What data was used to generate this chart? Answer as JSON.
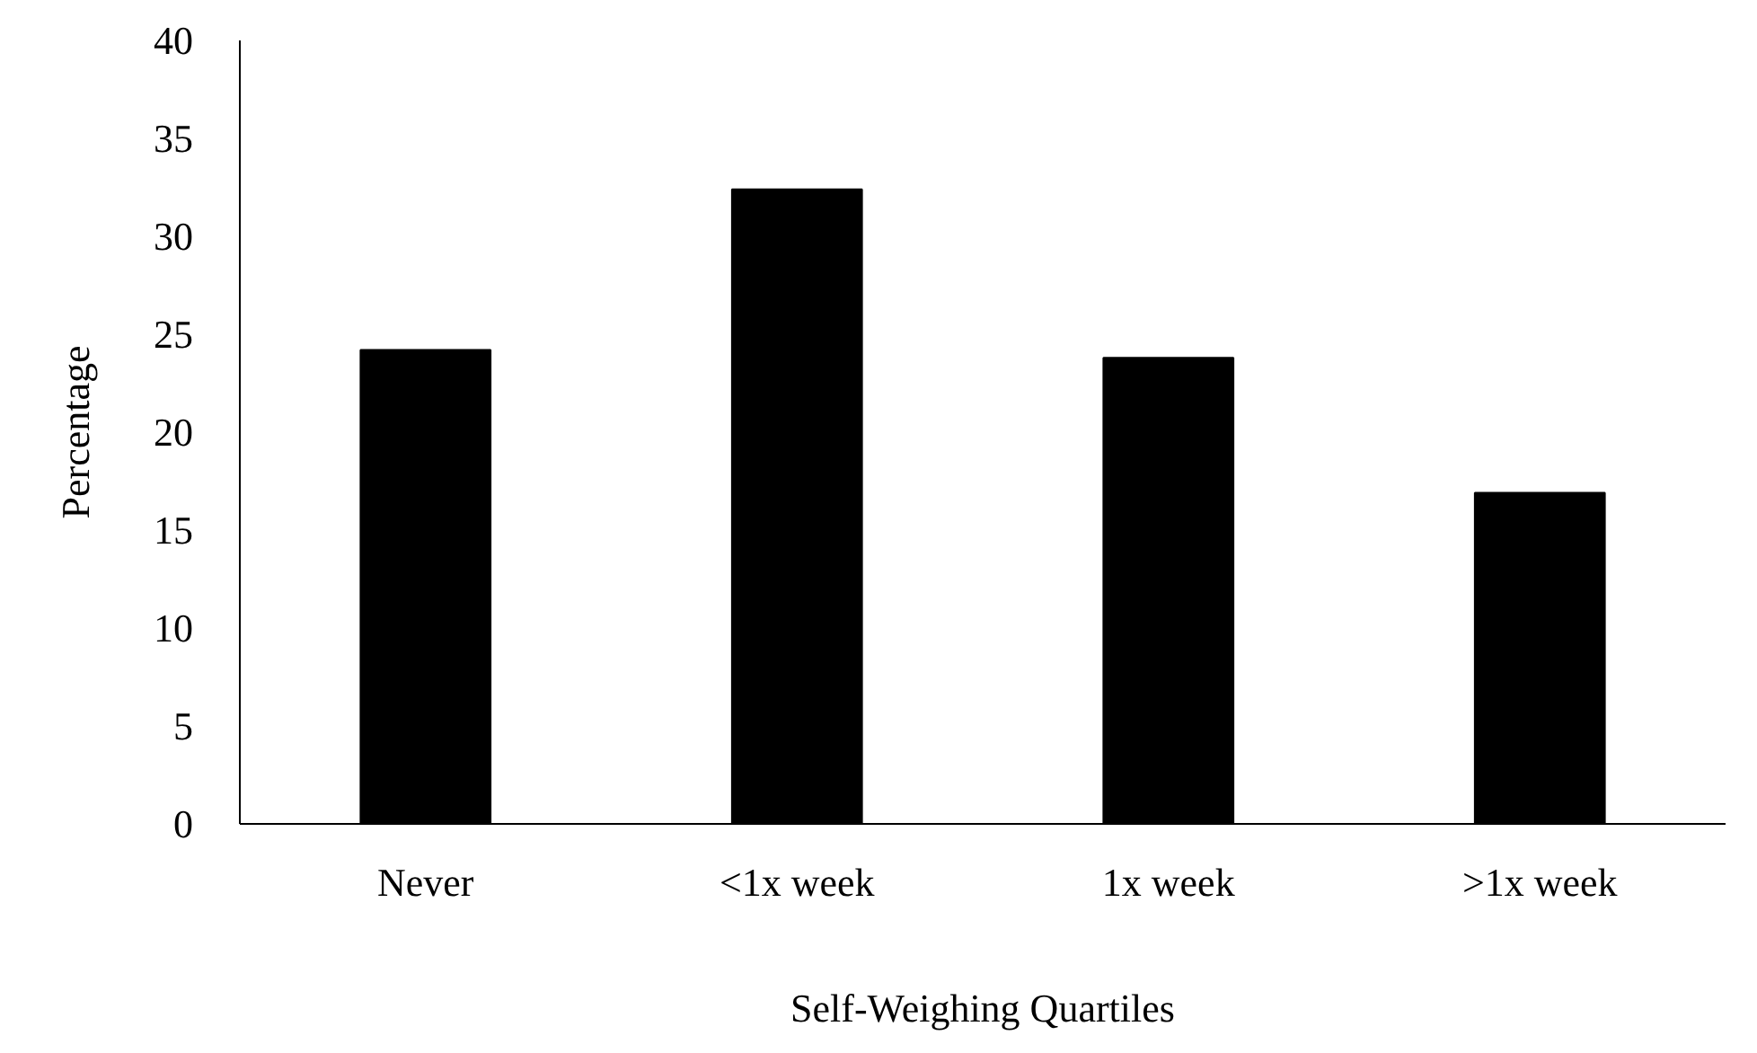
{
  "chart_data": {
    "type": "bar",
    "xlabel": "Self-Weighing Quartiles",
    "ylabel": "Percentage",
    "categories": [
      "Never",
      "<1x week",
      "1x week",
      ">1x week"
    ],
    "values": [
      24.2,
      32.4,
      23.8,
      16.9
    ],
    "color": "#000000",
    "ylim": [
      0,
      40
    ],
    "yticks": [
      0,
      5,
      10,
      15,
      20,
      25,
      30,
      35,
      40
    ],
    "grid": false
  }
}
